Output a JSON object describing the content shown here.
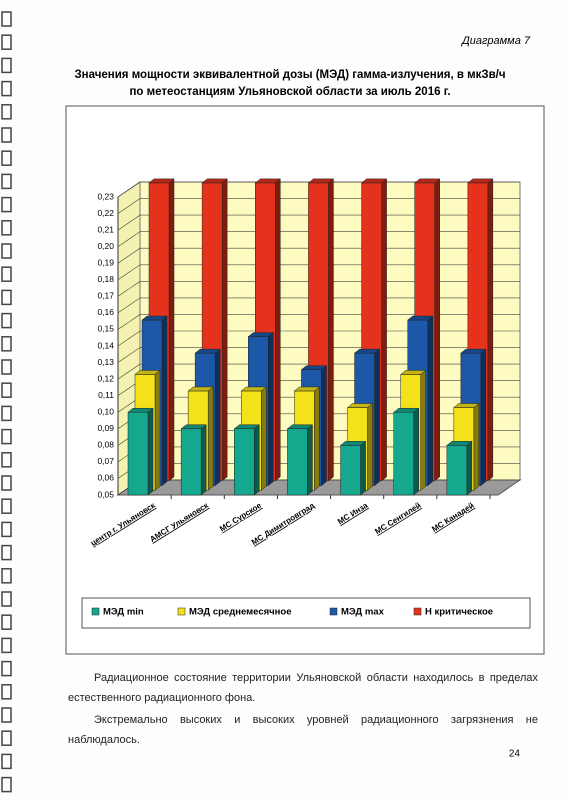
{
  "header": "Диаграмма 7",
  "chart_data": {
    "type": "bar3d",
    "title": [
      "Значения мощности эквивалентной дозы (МЭД) гамма-излучения, в мкЗв/ч",
      "по метеостанциям Ульяновской области за июль 2016 г."
    ],
    "categories": [
      "центр г. Ульяновск",
      "АМСГ Ульяновск",
      "МС Сурское",
      "МС Димитровград",
      "МС Инза",
      "МС Сенгилей",
      "МС Канадей"
    ],
    "series": [
      {
        "name": "МЭД min",
        "color": "#16a88e",
        "values": [
          0.1,
          0.09,
          0.09,
          0.09,
          0.08,
          0.1,
          0.08
        ]
      },
      {
        "name": "МЭД среднемесячное",
        "color": "#f3e21a",
        "values": [
          0.12,
          0.11,
          0.11,
          0.11,
          0.1,
          0.12,
          0.1
        ]
      },
      {
        "name": "МЭД max",
        "color": "#1d58a8",
        "values": [
          0.15,
          0.13,
          0.14,
          0.12,
          0.13,
          0.15,
          0.13
        ]
      },
      {
        "name": "Н критическое",
        "color": "#e5321d",
        "values": [
          0.23,
          0.23,
          0.23,
          0.23,
          0.23,
          0.23,
          0.23
        ]
      }
    ],
    "ylim": [
      0.05,
      0.23
    ],
    "yticks": [
      {
        "value": 0.05,
        "label": "0,05"
      },
      {
        "value": 0.06,
        "label": "0,06"
      },
      {
        "value": 0.07,
        "label": "0,07"
      },
      {
        "value": 0.08,
        "label": "0,08"
      },
      {
        "value": 0.09,
        "label": "0,09"
      },
      {
        "value": 0.1,
        "label": "0,10"
      },
      {
        "value": 0.11,
        "label": "0,11"
      },
      {
        "value": 0.12,
        "label": "0,12"
      },
      {
        "value": 0.13,
        "label": "0,13"
      },
      {
        "value": 0.14,
        "label": "0,14"
      },
      {
        "value": 0.15,
        "label": "0,15"
      },
      {
        "value": 0.16,
        "label": "0,16"
      },
      {
        "value": 0.17,
        "label": "0,17"
      },
      {
        "value": 0.18,
        "label": "0,18"
      },
      {
        "value": 0.19,
        "label": "0,19"
      },
      {
        "value": 0.2,
        "label": "0,20"
      },
      {
        "value": 0.21,
        "label": "0,21"
      },
      {
        "value": 0.22,
        "label": "0,22"
      },
      {
        "value": 0.23,
        "label": "0,23"
      }
    ],
    "grid": true,
    "legend": "bottom"
  },
  "paragraphs": [
    "Радиационное состояние территории Ульяновской области находилось в пределах естественного радиационного фона.",
    "Экстремально высоких и высоких уровней радиационного загрязнения не наблюдалось."
  ],
  "page_number": "24"
}
